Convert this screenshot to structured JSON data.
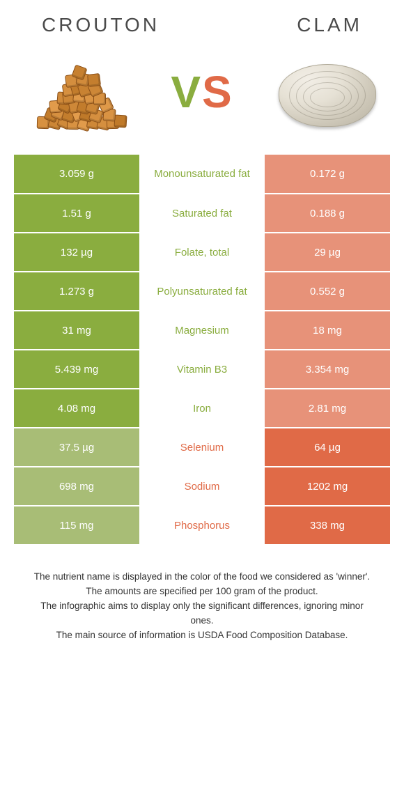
{
  "colors": {
    "left": "#8aad3f",
    "right": "#e06a47",
    "left_dim": "#a8bd76",
    "right_dim": "#e79279",
    "text_dark": "#333333"
  },
  "header": {
    "left_title": "CROUTON",
    "right_title": "CLAM",
    "vs_v": "V",
    "vs_s": "S"
  },
  "rows": [
    {
      "left": "3.059 g",
      "mid": "Monounsaturated fat",
      "right": "0.172 g",
      "winner": "left"
    },
    {
      "left": "1.51 g",
      "mid": "Saturated fat",
      "right": "0.188 g",
      "winner": "left"
    },
    {
      "left": "132 µg",
      "mid": "Folate, total",
      "right": "29 µg",
      "winner": "left"
    },
    {
      "left": "1.273 g",
      "mid": "Polyunsaturated fat",
      "right": "0.552 g",
      "winner": "left"
    },
    {
      "left": "31 mg",
      "mid": "Magnesium",
      "right": "18 mg",
      "winner": "left"
    },
    {
      "left": "5.439 mg",
      "mid": "Vitamin B3",
      "right": "3.354 mg",
      "winner": "left"
    },
    {
      "left": "4.08 mg",
      "mid": "Iron",
      "right": "2.81 mg",
      "winner": "left"
    },
    {
      "left": "37.5 µg",
      "mid": "Selenium",
      "right": "64 µg",
      "winner": "right"
    },
    {
      "left": "698 mg",
      "mid": "Sodium",
      "right": "1202 mg",
      "winner": "right"
    },
    {
      "left": "115 mg",
      "mid": "Phosphorus",
      "right": "338 mg",
      "winner": "right"
    }
  ],
  "footer": {
    "l1": "The nutrient name is displayed in the color of the food we considered as 'winner'.",
    "l2": "The amounts are specified per 100 gram of the product.",
    "l3": "The infographic aims to display only the significant differences, ignoring minor ones.",
    "l4": "The main source of information is USDA Food Composition Database."
  }
}
